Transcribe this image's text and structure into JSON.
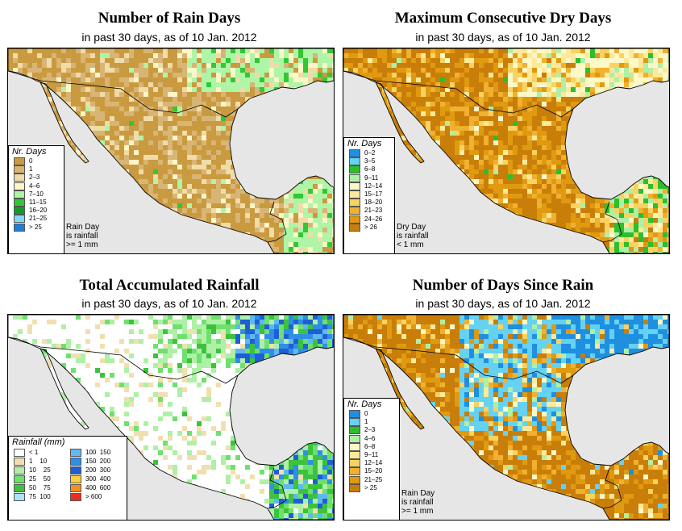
{
  "panels": {
    "rain_days": {
      "title": "Number of Rain Days",
      "subtitle": "in past 30 days, as of  10 Jan. 2012",
      "legend_title": "Nr. Days",
      "legend": [
        {
          "label": "0",
          "color": "#c99a40"
        },
        {
          "label": "1",
          "color": "#d9b575"
        },
        {
          "label": "2–3",
          "color": "#f0dca8"
        },
        {
          "label": "4–6",
          "color": "#fdf6c8"
        },
        {
          "label": "7–10",
          "color": "#aef5a6"
        },
        {
          "label": "11–15",
          "color": "#33c733"
        },
        {
          "label": "16–20",
          "color": "#129c26"
        },
        {
          "label": "21–25",
          "color": "#7ddcf5"
        },
        {
          "label": "> 25",
          "color": "#1f7fd6"
        }
      ],
      "note": [
        "Rain Day",
        "is rainfall",
        ">= 1 mm"
      ]
    },
    "dry_days": {
      "title": "Maximum Consecutive Dry Days",
      "subtitle": "in past 30 days, as of  10 Jan. 2012",
      "legend_title": "Nr. Days",
      "legend": [
        {
          "label": "0–2",
          "color": "#1f8fe0"
        },
        {
          "label": "3–5",
          "color": "#66d2f2"
        },
        {
          "label": "6–8",
          "color": "#2dbe2d"
        },
        {
          "label": "9–11",
          "color": "#aef0a6"
        },
        {
          "label": "12–14",
          "color": "#fdf8c8"
        },
        {
          "label": "15–17",
          "color": "#fce99a"
        },
        {
          "label": "18–20",
          "color": "#fad260"
        },
        {
          "label": "21–23",
          "color": "#f0b030"
        },
        {
          "label": "24–26",
          "color": "#e09a10"
        },
        {
          "label": "> 26",
          "color": "#c97e0a"
        }
      ],
      "note": [
        "Dry Day",
        "is rainfall",
        "< 1 mm"
      ]
    },
    "rainfall": {
      "title": "Total Accumulated Rainfall",
      "subtitle": "in past 30 days, as of  10 Jan. 2012",
      "legend_title": "Rainfall (mm)",
      "legend": [
        {
          "label": "< 1",
          "color": "#ffffff"
        },
        {
          "label": "100  150",
          "color": "#5fb8f0"
        },
        {
          "label": "1    10",
          "color": "#f0e0b0"
        },
        {
          "label": "150  200",
          "color": "#2f8ee8"
        },
        {
          "label": "10    25",
          "color": "#aef0a6"
        },
        {
          "label": "200  300",
          "color": "#1e5fd8"
        },
        {
          "label": "25    50",
          "color": "#6ee06e"
        },
        {
          "label": "300  400",
          "color": "#f8d040"
        },
        {
          "label": "50    75",
          "color": "#3cc23c"
        },
        {
          "label": "400  600",
          "color": "#f09020"
        },
        {
          "label": "75  100",
          "color": "#a8e4f8"
        },
        {
          "label": "> 600",
          "color": "#e83020"
        }
      ]
    },
    "since_rain": {
      "title": "Number of Days Since Rain",
      "subtitle": "in past 30 days, as of  10 Jan. 2012",
      "legend_title": "Nr. Days",
      "legend": [
        {
          "label": "0",
          "color": "#1f8fe0"
        },
        {
          "label": "1",
          "color": "#66d2f2"
        },
        {
          "label": "2–3",
          "color": "#2dbe2d"
        },
        {
          "label": "4–6",
          "color": "#aef0a6"
        },
        {
          "label": "6–8",
          "color": "#fdf8c8"
        },
        {
          "label": "9–11",
          "color": "#fce99a"
        },
        {
          "label": "12–14",
          "color": "#fad260"
        },
        {
          "label": "15–20",
          "color": "#f0b030"
        },
        {
          "label": "21–25",
          "color": "#e09a10"
        },
        {
          "label": "> 25",
          "color": "#c97e0a"
        }
      ],
      "note": [
        "Rain Day",
        "is rainfall",
        ">= 1 mm"
      ]
    }
  }
}
